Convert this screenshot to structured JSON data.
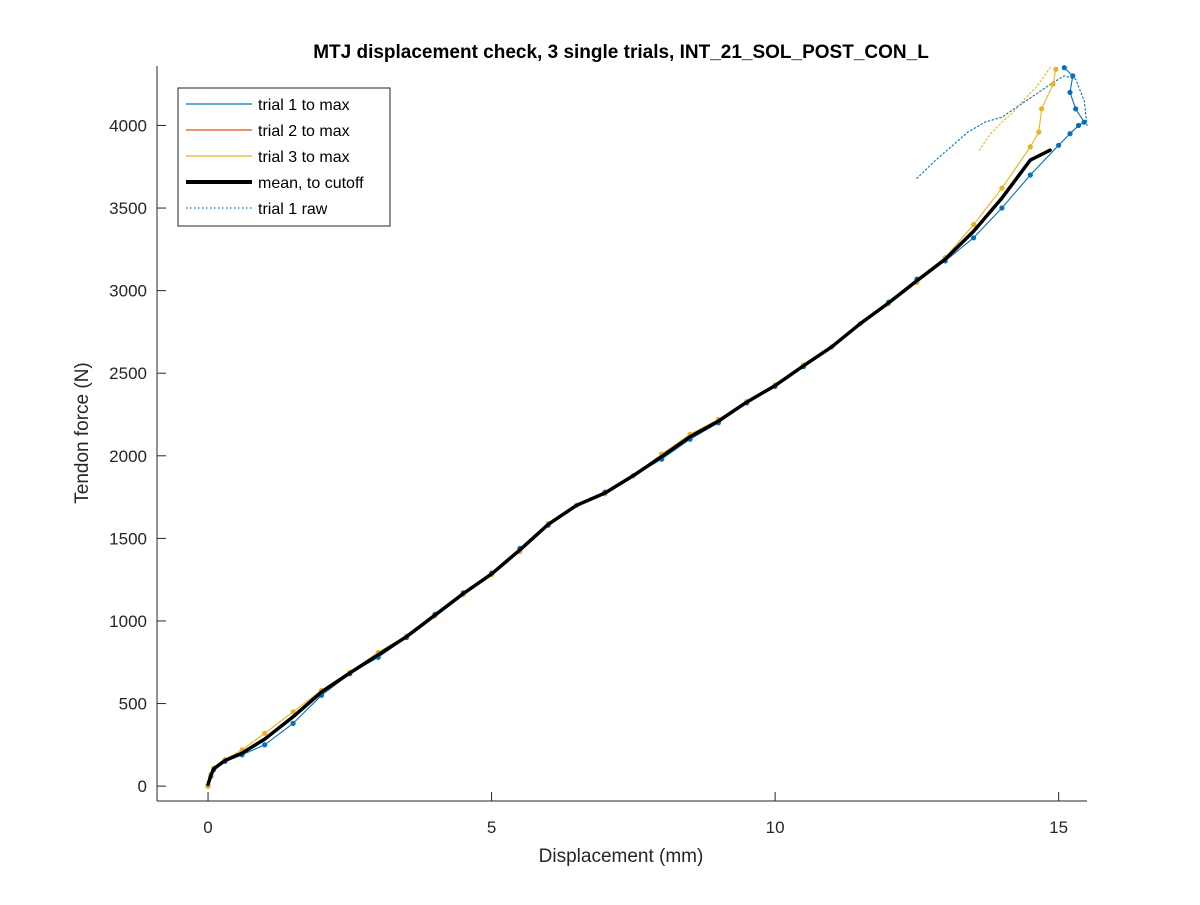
{
  "chart_data": {
    "type": "line",
    "title": "MTJ displacement check, 3 single trials, INT_21_SOL_POST_CON_L",
    "xlabel": "Displacement (mm)",
    "ylabel": "Tendon force (N)",
    "xlim": [
      -0.9,
      15.5
    ],
    "ylim": [
      -90,
      4360
    ],
    "xticks": [
      0,
      5,
      10,
      15
    ],
    "yticks": [
      0,
      500,
      1000,
      1500,
      2000,
      2500,
      3000,
      3500,
      4000
    ],
    "grid": false,
    "legend_position": "top-left",
    "colors": {
      "trial1": "#0072BD",
      "trial2": "#D95319",
      "trial3": "#EDB120",
      "trial1_raw": "#0072BD",
      "trial3_raw": "#EDB120",
      "mean": "#000000",
      "axis": "#262626"
    },
    "series": [
      {
        "name": "trial 1 to max",
        "style": "solid-thin-with-dot-markers",
        "x": [
          0,
          0.05,
          0.1,
          0.3,
          0.6,
          1.0,
          1.5,
          2.0,
          2.5,
          3.0,
          3.5,
          4.0,
          4.5,
          5.0,
          5.5,
          6.0,
          6.5,
          7.0,
          7.5,
          8.0,
          8.5,
          9.0,
          9.5,
          10.0,
          10.5,
          11.0,
          11.5,
          12.0,
          12.5,
          13.0,
          13.5,
          14.0,
          14.5,
          15.0,
          15.2,
          15.35,
          15.45,
          15.3,
          15.2,
          15.25,
          15.1
        ],
        "y": [
          0,
          60,
          100,
          150,
          190,
          250,
          380,
          550,
          680,
          780,
          900,
          1040,
          1170,
          1290,
          1440,
          1580,
          1700,
          1780,
          1880,
          1980,
          2100,
          2200,
          2320,
          2420,
          2540,
          2660,
          2800,
          2930,
          3070,
          3180,
          3320,
          3500,
          3700,
          3880,
          3950,
          4000,
          4020,
          4100,
          4200,
          4300,
          4350
        ]
      },
      {
        "name": "trial 2 to max",
        "style": "solid-thin",
        "x": [],
        "y": []
      },
      {
        "name": "trial 3 to max",
        "style": "solid-thin-with-dot-markers",
        "x": [
          0,
          0.05,
          0.1,
          0.3,
          0.6,
          1.0,
          1.5,
          2.0,
          2.5,
          3.0,
          3.5,
          4.0,
          4.5,
          5.0,
          5.5,
          6.0,
          6.5,
          7.0,
          7.5,
          8.0,
          8.5,
          9.0,
          9.5,
          10.0,
          10.5,
          11.0,
          11.5,
          12.0,
          12.5,
          13.0,
          13.5,
          14.0,
          14.5,
          14.65,
          14.7,
          14.9,
          14.95
        ],
        "y": [
          0,
          70,
          110,
          160,
          220,
          320,
          450,
          580,
          690,
          810,
          910,
          1030,
          1160,
          1280,
          1420,
          1590,
          1700,
          1770,
          1880,
          2010,
          2130,
          2220,
          2330,
          2430,
          2550,
          2660,
          2800,
          2920,
          3050,
          3200,
          3400,
          3620,
          3870,
          3960,
          4100,
          4250,
          4340
        ]
      },
      {
        "name": "mean, to cutoff",
        "style": "solid-thick",
        "x": [
          0,
          0.05,
          0.1,
          0.3,
          0.6,
          1.0,
          1.5,
          2.0,
          2.5,
          3.0,
          3.5,
          4.0,
          4.5,
          5.0,
          5.5,
          6.0,
          6.5,
          7.0,
          7.5,
          8.0,
          8.5,
          9.0,
          9.5,
          10.0,
          10.5,
          11.0,
          11.5,
          12.0,
          12.5,
          13.0,
          13.5,
          14.0,
          14.5,
          14.85
        ],
        "y": [
          10,
          65,
          105,
          155,
          200,
          285,
          420,
          570,
          685,
          795,
          905,
          1035,
          1165,
          1285,
          1430,
          1585,
          1700,
          1775,
          1880,
          1995,
          2115,
          2210,
          2325,
          2425,
          2545,
          2660,
          2800,
          2925,
          3060,
          3190,
          3360,
          3560,
          3790,
          3850
        ]
      },
      {
        "name": "trial 1 raw",
        "style": "dotted",
        "x": [
          12.5,
          12.8,
          13.1,
          13.4,
          13.7,
          14.0,
          14.3,
          14.6,
          14.9,
          15.1,
          15.3,
          15.45,
          15.5
        ],
        "y": [
          3680,
          3780,
          3870,
          3960,
          4020,
          4050,
          4120,
          4190,
          4260,
          4300,
          4280,
          4150,
          4000
        ]
      },
      {
        "name": "",
        "style": "dotted",
        "x": [
          13.6,
          13.8,
          14.0,
          14.2,
          14.4,
          14.6,
          14.75,
          14.85
        ],
        "y": [
          3850,
          3950,
          4020,
          4080,
          4160,
          4230,
          4300,
          4350
        ]
      }
    ]
  }
}
